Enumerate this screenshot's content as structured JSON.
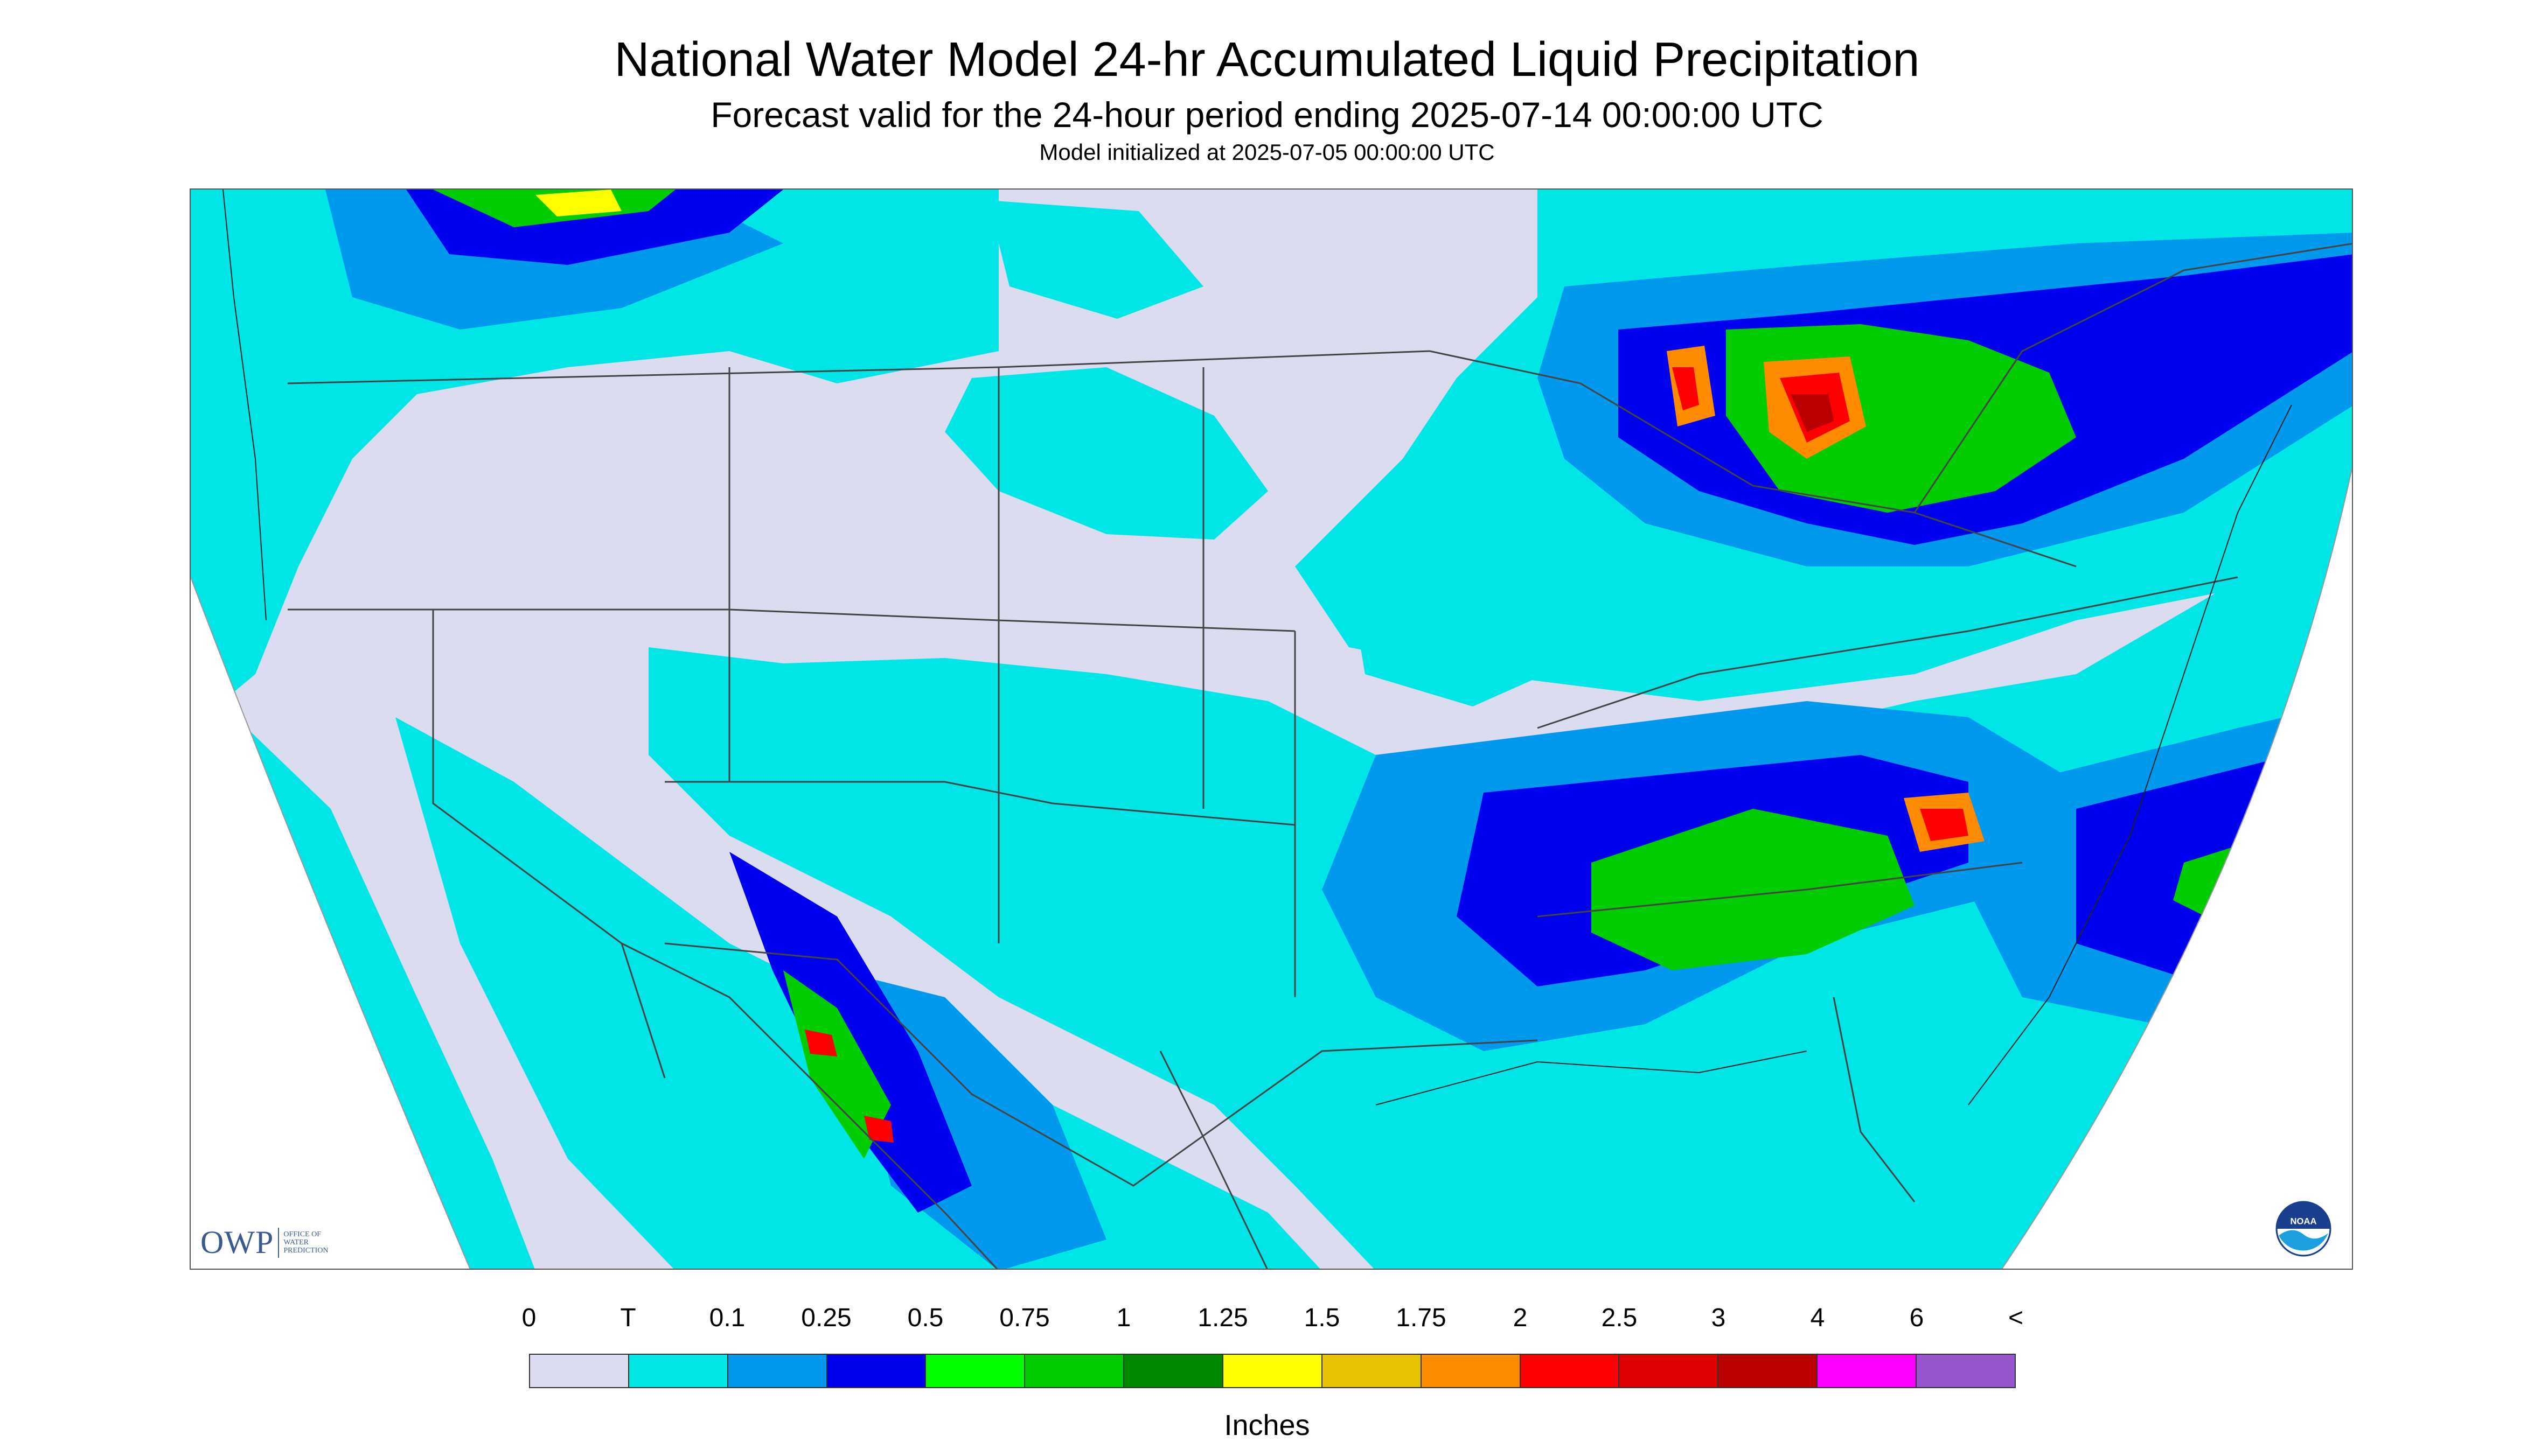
{
  "header": {
    "title": "National Water Model 24-hr Accumulated Liquid Precipitation",
    "subtitle": "Forecast valid for the 24-hour period ending 2025-07-14 00:00:00 UTC",
    "initialized": "Model initialized at 2025-07-05 00:00:00 UTC"
  },
  "logos": {
    "owp_text": "OWP",
    "owp_sub": "OFFICE OF\nWATER\nPREDICTION",
    "noaa_text": "NOAA"
  },
  "legend": {
    "tick_labels": [
      "0",
      "T",
      "0.1",
      "0.25",
      "0.5",
      "0.75",
      "1",
      "1.25",
      "1.5",
      "1.75",
      "2",
      "2.5",
      "3",
      "4",
      "6",
      "<"
    ],
    "colors": [
      "#dcdcf0",
      "#00e6e6",
      "#0099ee",
      "#0000f0",
      "#00ff00",
      "#00cc00",
      "#008800",
      "#ffff00",
      "#e6c200",
      "#ff8c00",
      "#ff0000",
      "#dd0000",
      "#bb0000",
      "#ff00ff",
      "#9955cc"
    ],
    "units": "Inches"
  },
  "map": {
    "projection_fill_color": "#dcdcf0",
    "outside_color": "#ffffff",
    "boundary_color": "#555555",
    "region": "Continental United States and surrounding areas"
  }
}
